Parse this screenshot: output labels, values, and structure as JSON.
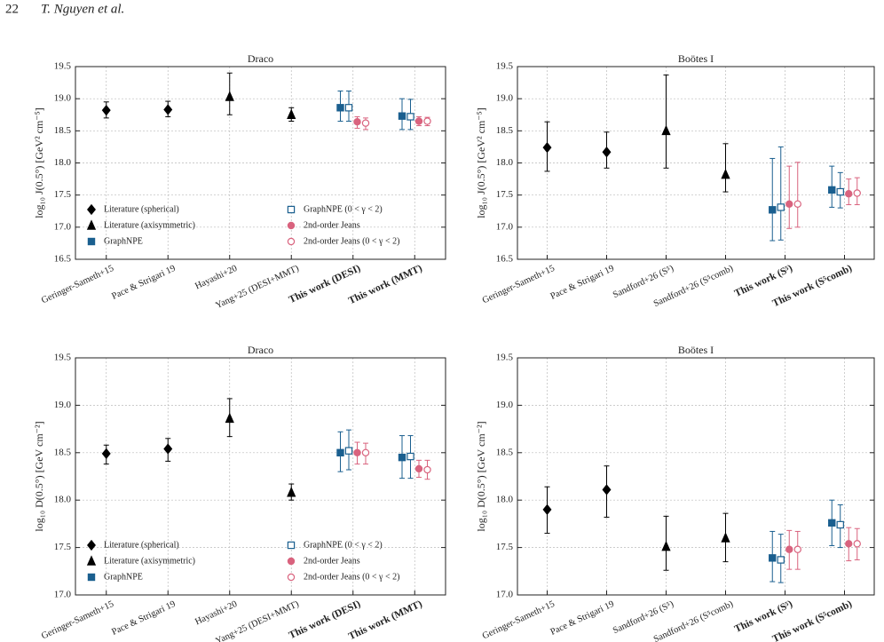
{
  "header": {
    "page": "22",
    "authors": "T. Nguyen et al."
  },
  "chart_data": [
    {
      "type": "errorbar",
      "title": "Draco",
      "y_label": "log₁₀ J(0.5°) [GeV² cm⁻⁵]",
      "categories": [
        "Geringer-Sameth+15",
        "Pace & Strigari 19",
        "Hayashi+20",
        "Yang+25 (DESI+MMT)",
        "This work (DESI)",
        "This work (MMT)"
      ],
      "ylim": [
        16.5,
        19.5
      ],
      "yticks": [
        16.5,
        {
          "value": 17,
          "label": "17.0"
        },
        17.5,
        {
          "value": 18,
          "label": "18.0"
        },
        18.5,
        {
          "value": 19,
          "label": "19.0"
        },
        19.5
      ],
      "grid": true,
      "legend": "lower left",
      "series": [
        {
          "name": "Literature (spherical)",
          "color": "#000000",
          "marker": "diamond",
          "filled": true,
          "values": [
            18.82,
            18.83,
            null,
            null,
            null,
            null
          ],
          "low": [
            18.7,
            18.72,
            null,
            null,
            null,
            null
          ],
          "high": [
            18.95,
            18.96,
            null,
            null,
            null,
            null
          ]
        },
        {
          "name": "Literature (axisymmetric)",
          "color": "#000000",
          "marker": "triangle",
          "filled": true,
          "values": [
            null,
            null,
            19.03,
            18.75,
            null,
            null
          ],
          "low": [
            null,
            null,
            18.75,
            18.65,
            null,
            null
          ],
          "high": [
            null,
            null,
            19.4,
            18.86,
            null,
            null
          ]
        },
        {
          "name": "GraphNPE",
          "color": "#1a5f8f",
          "marker": "square",
          "filled": true,
          "values": [
            null,
            null,
            null,
            null,
            18.86,
            18.73
          ],
          "low": [
            null,
            null,
            null,
            null,
            18.65,
            18.52
          ],
          "high": [
            null,
            null,
            null,
            null,
            19.12,
            19.0
          ]
        },
        {
          "name": "GraphNPE (0 < γ < 2)",
          "color": "#1a5f8f",
          "marker": "square",
          "filled": false,
          "values": [
            null,
            null,
            null,
            null,
            18.86,
            18.72
          ],
          "low": [
            null,
            null,
            null,
            null,
            18.65,
            18.52
          ],
          "high": [
            null,
            null,
            null,
            null,
            19.12,
            18.99
          ]
        },
        {
          "name": "2nd-order Jeans",
          "color": "#d9637e",
          "marker": "circle",
          "filled": true,
          "values": [
            null,
            null,
            null,
            null,
            18.64,
            18.65
          ],
          "low": [
            null,
            null,
            null,
            null,
            18.54,
            18.58
          ],
          "high": [
            null,
            null,
            null,
            null,
            18.72,
            18.72
          ]
        },
        {
          "name": "2nd-order Jeans (0 < γ < 2)",
          "color": "#d9637e",
          "marker": "circle",
          "filled": false,
          "values": [
            null,
            null,
            null,
            null,
            18.62,
            18.65
          ],
          "low": [
            null,
            null,
            null,
            null,
            18.52,
            18.58
          ],
          "high": [
            null,
            null,
            null,
            null,
            18.7,
            18.71
          ]
        }
      ]
    },
    {
      "type": "errorbar",
      "title": "Boötes I",
      "y_label": "log₁₀ J(0.5°) [GeV² cm⁻⁵]",
      "categories": [
        "Geringer-Sameth+15",
        "Pace & Strigari 19",
        "Sandford+26 (S⁵)",
        "Sandford+26 (S⁵comb)",
        "This work (S⁵)",
        "This work (S⁵comb)"
      ],
      "ylim": [
        16.5,
        19.5
      ],
      "yticks": [
        16.5,
        {
          "value": 17,
          "label": "17.0"
        },
        17.5,
        {
          "value": 18,
          "label": "18.0"
        },
        18.5,
        {
          "value": 19,
          "label": "19.0"
        },
        19.5
      ],
      "grid": true,
      "series": [
        {
          "color": "#000000",
          "marker": "diamond",
          "filled": true,
          "values": [
            18.24,
            18.17,
            null,
            null,
            null,
            null
          ],
          "low": [
            17.87,
            17.92,
            null,
            null,
            null,
            null
          ],
          "high": [
            18.64,
            18.48,
            null,
            null,
            null,
            null
          ]
        },
        {
          "color": "#000000",
          "marker": "triangle",
          "filled": true,
          "values": [
            null,
            null,
            18.5,
            17.82,
            null,
            null
          ],
          "low": [
            null,
            null,
            17.92,
            17.55,
            null,
            null
          ],
          "high": [
            null,
            null,
            19.37,
            18.3,
            null,
            null
          ]
        },
        {
          "color": "#1a5f8f",
          "marker": "square",
          "filled": true,
          "values": [
            null,
            null,
            null,
            null,
            17.27,
            17.58
          ],
          "low": [
            null,
            null,
            null,
            null,
            16.79,
            17.31
          ],
          "high": [
            null,
            null,
            null,
            null,
            18.07,
            17.95
          ]
        },
        {
          "color": "#1a5f8f",
          "marker": "square",
          "filled": false,
          "values": [
            null,
            null,
            null,
            null,
            17.31,
            17.55
          ],
          "low": [
            null,
            null,
            null,
            null,
            16.8,
            17.3
          ],
          "high": [
            null,
            null,
            null,
            null,
            18.25,
            17.85
          ]
        },
        {
          "color": "#d9637e",
          "marker": "circle",
          "filled": true,
          "values": [
            null,
            null,
            null,
            null,
            17.36,
            17.52
          ],
          "low": [
            null,
            null,
            null,
            null,
            16.98,
            17.35
          ],
          "high": [
            null,
            null,
            null,
            null,
            17.95,
            17.75
          ]
        },
        {
          "color": "#d9637e",
          "marker": "circle",
          "filled": false,
          "values": [
            null,
            null,
            null,
            null,
            17.36,
            17.53
          ],
          "low": [
            null,
            null,
            null,
            null,
            17.0,
            17.35
          ],
          "high": [
            null,
            null,
            null,
            null,
            18.01,
            17.77
          ]
        }
      ]
    },
    {
      "type": "errorbar",
      "title": "Draco",
      "y_label": "log₁₀ D(0.5°) [GeV cm⁻²]",
      "categories": [
        "Geringer-Sameth+15",
        "Pace & Strigari 19",
        "Hayashi+20",
        "Yang+25 (DESI+MMT)",
        "This work (DESI)",
        "This work (MMT)"
      ],
      "ylim": [
        17,
        19.5
      ],
      "yticks": [
        {
          "value": 17,
          "label": "17.0"
        },
        17.5,
        {
          "value": 18,
          "label": "18.0"
        },
        18.5,
        {
          "value": 19,
          "label": "19.0"
        },
        19.5
      ],
      "grid": true,
      "legend": "lower left",
      "series": [
        {
          "name": "Literature (spherical)",
          "color": "#000000",
          "marker": "diamond",
          "filled": true,
          "values": [
            18.49,
            18.54,
            null,
            null,
            null,
            null
          ],
          "low": [
            18.38,
            18.41,
            null,
            null,
            null,
            null
          ],
          "high": [
            18.58,
            18.65,
            null,
            null,
            null,
            null
          ]
        },
        {
          "name": "Literature (axisymmetric)",
          "color": "#000000",
          "marker": "triangle",
          "filled": true,
          "values": [
            null,
            null,
            18.86,
            18.08,
            null,
            null
          ],
          "low": [
            null,
            null,
            18.67,
            18.0,
            null,
            null
          ],
          "high": [
            null,
            null,
            19.07,
            18.17,
            null,
            null
          ]
        },
        {
          "name": "GraphNPE",
          "color": "#1a5f8f",
          "marker": "square",
          "filled": true,
          "values": [
            null,
            null,
            null,
            null,
            18.5,
            18.45
          ],
          "low": [
            null,
            null,
            null,
            null,
            18.3,
            18.23
          ],
          "high": [
            null,
            null,
            null,
            null,
            18.72,
            18.68
          ]
        },
        {
          "name": "GraphNPE (0 < γ < 2)",
          "color": "#1a5f8f",
          "marker": "square",
          "filled": false,
          "values": [
            null,
            null,
            null,
            null,
            18.52,
            18.46
          ],
          "low": [
            null,
            null,
            null,
            null,
            18.32,
            18.23
          ],
          "high": [
            null,
            null,
            null,
            null,
            18.74,
            18.68
          ]
        },
        {
          "name": "2nd-order Jeans",
          "color": "#d9637e",
          "marker": "circle",
          "filled": true,
          "values": [
            null,
            null,
            null,
            null,
            18.5,
            18.33
          ],
          "low": [
            null,
            null,
            null,
            null,
            18.38,
            18.24
          ],
          "high": [
            null,
            null,
            null,
            null,
            18.61,
            18.42
          ]
        },
        {
          "name": "2nd-order Jeans (0 < γ < 2)",
          "color": "#d9637e",
          "marker": "circle",
          "filled": false,
          "values": [
            null,
            null,
            null,
            null,
            18.5,
            18.32
          ],
          "low": [
            null,
            null,
            null,
            null,
            18.38,
            18.22
          ],
          "high": [
            null,
            null,
            null,
            null,
            18.6,
            18.42
          ]
        }
      ]
    },
    {
      "type": "errorbar",
      "title": "Boötes I",
      "y_label": "log₁₀ D(0.5°) [GeV cm⁻²]",
      "categories": [
        "Geringer-Sameth+15",
        "Pace & Strigari 19",
        "Sandford+26 (S⁵)",
        "Sandford+26 (S⁵comb)",
        "This work (S⁵)",
        "This work (S⁵comb)"
      ],
      "ylim": [
        17,
        19.5
      ],
      "yticks": [
        {
          "value": 17,
          "label": "17.0"
        },
        17.5,
        {
          "value": 18,
          "label": "18.0"
        },
        18.5,
        {
          "value": 19,
          "label": "19.0"
        },
        19.5
      ],
      "grid": true,
      "series": [
        {
          "color": "#000000",
          "marker": "diamond",
          "filled": true,
          "values": [
            17.9,
            18.11,
            null,
            null,
            null,
            null
          ],
          "low": [
            17.65,
            17.82,
            null,
            null,
            null,
            null
          ],
          "high": [
            18.14,
            18.36,
            null,
            null,
            null,
            null
          ]
        },
        {
          "color": "#000000",
          "marker": "triangle",
          "filled": true,
          "values": [
            null,
            null,
            17.51,
            17.6,
            null,
            null
          ],
          "low": [
            null,
            null,
            17.26,
            17.35,
            null,
            null
          ],
          "high": [
            null,
            null,
            17.83,
            17.86,
            null,
            null
          ]
        },
        {
          "color": "#1a5f8f",
          "marker": "square",
          "filled": true,
          "values": [
            null,
            null,
            null,
            null,
            17.39,
            17.76
          ],
          "low": [
            null,
            null,
            null,
            null,
            17.14,
            17.52
          ],
          "high": [
            null,
            null,
            null,
            null,
            17.67,
            18.0
          ]
        },
        {
          "color": "#1a5f8f",
          "marker": "square",
          "filled": false,
          "values": [
            null,
            null,
            null,
            null,
            17.37,
            17.74
          ],
          "low": [
            null,
            null,
            null,
            null,
            17.13,
            17.5
          ],
          "high": [
            null,
            null,
            null,
            null,
            17.64,
            17.95
          ]
        },
        {
          "color": "#d9637e",
          "marker": "circle",
          "filled": true,
          "values": [
            null,
            null,
            null,
            null,
            17.48,
            17.54
          ],
          "low": [
            null,
            null,
            null,
            null,
            17.27,
            17.36
          ],
          "high": [
            null,
            null,
            null,
            null,
            17.68,
            17.71
          ]
        },
        {
          "color": "#d9637e",
          "marker": "circle",
          "filled": false,
          "values": [
            null,
            null,
            null,
            null,
            17.48,
            17.54
          ],
          "low": [
            null,
            null,
            null,
            null,
            17.27,
            17.37
          ],
          "high": [
            null,
            null,
            null,
            null,
            17.67,
            17.7
          ]
        }
      ]
    }
  ]
}
